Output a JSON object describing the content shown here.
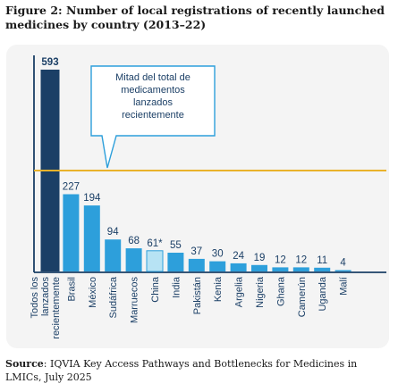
{
  "figure": {
    "title_line1": "Figure 2: Number of local registrations of recently launched",
    "title_line2": "medicines by country (2013–22)",
    "source_label": "Source",
    "source_text": ": IQVIA Key Access Pathways and Bottlenecks for Medicines in LMICs, July 2025"
  },
  "chart_data": {
    "type": "bar",
    "categories": [
      "Todos los lanzados recientemente",
      "Brasil",
      "México",
      "Sudáfrica",
      "Marruecos",
      "China",
      "India",
      "Pakistán",
      "Kenia",
      "Argelia",
      "Nigeria",
      "Ghana",
      "Camerún",
      "Uganda",
      "Malí"
    ],
    "values": [
      593,
      227,
      194,
      94,
      68,
      61,
      55,
      37,
      30,
      24,
      19,
      12,
      12,
      11,
      4
    ],
    "value_labels": [
      "593",
      "227",
      "194",
      "94",
      "68",
      "61*",
      "55",
      "37",
      "30",
      "24",
      "19",
      "12",
      "12",
      "11",
      "4"
    ],
    "colors": [
      "#1b3f66",
      "#2d9fdb",
      "#2d9fdb",
      "#2d9fdb",
      "#2d9fdb",
      "#b7e3f4",
      "#2d9fdb",
      "#2d9fdb",
      "#2d9fdb",
      "#2d9fdb",
      "#2d9fdb",
      "#2d9fdb",
      "#2d9fdb",
      "#2d9fdb",
      "#2d9fdb"
    ],
    "reference_line": {
      "value": 296.5,
      "color": "#e9b22b"
    },
    "annotation": "Mitad del total de medicamentos lanzados recientemente",
    "ylim": [
      0,
      593
    ],
    "grid": false,
    "xlabel": "",
    "ylabel": ""
  }
}
